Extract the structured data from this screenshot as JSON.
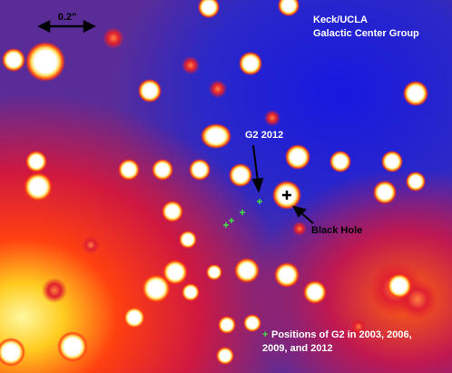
{
  "scale_bar": {
    "label": "0.2\""
  },
  "credit": {
    "lines": [
      "Keck/UCLA",
      "Galactic Center Group"
    ]
  },
  "annotations": {
    "g2": "G2 2012",
    "black_hole": "Black Hole"
  },
  "legend": {
    "marker": "+",
    "lines": [
      "Positions of G2 in 2003, 2006,",
      "2009, and 2012"
    ]
  }
}
